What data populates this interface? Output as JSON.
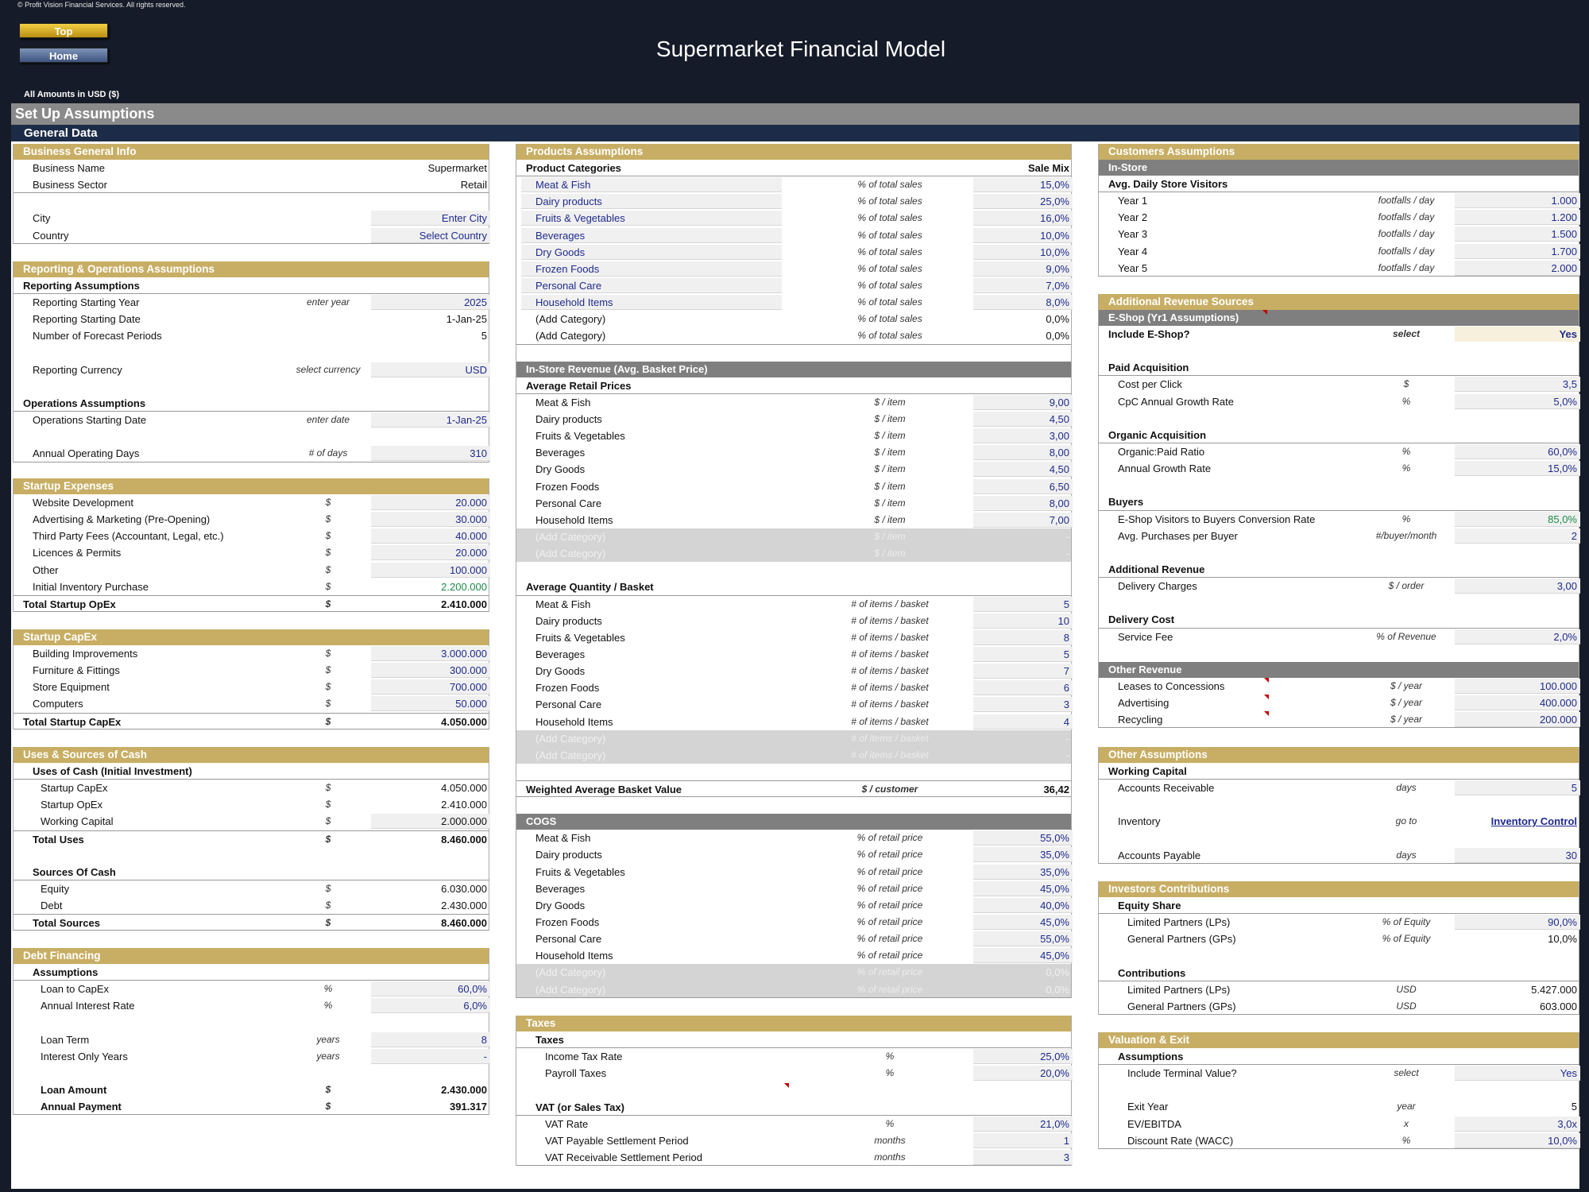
{
  "copyright": "© Profit Vision Financial Services. All rights reserved.",
  "nav": {
    "top": "Top",
    "home": "Home"
  },
  "title": "Supermarket Financial Model",
  "amounts_label": "All Amounts in  USD ($)",
  "setup_title": "Set Up Assumptions",
  "general_title": "General Data",
  "colors": {
    "gold": "#c8ae64",
    "navy": "#1c2b47",
    "gray": "#7f7f7f",
    "input_blue": "#1f2a8c",
    "green": "#1c8a48"
  },
  "business": {
    "header": "Business General Info",
    "rows": [
      {
        "label": "Business Name",
        "value": "Supermarket"
      },
      {
        "label": "Business Sector",
        "value": "Retail"
      },
      {
        "label": "City",
        "value": "Enter City"
      },
      {
        "label": "Country",
        "value": "Select Country"
      }
    ]
  },
  "reporting": {
    "header": "Reporting & Operations Assumptions",
    "reporting_title": "Reporting Assumptions",
    "rows": [
      {
        "label": "Reporting Starting Year",
        "unit": "enter year",
        "value": "2025"
      },
      {
        "label": "Reporting Starting Date",
        "unit": "",
        "value": "1-Jan-25"
      },
      {
        "label": "Number of Forecast Periods",
        "unit": "",
        "value": "5"
      },
      {
        "label": "Reporting Currency",
        "unit": "select currency",
        "value": "USD"
      }
    ],
    "operations_title": "Operations Assumptions",
    "ops_rows": [
      {
        "label": "Operations Starting Date",
        "unit": "enter date",
        "value": "1-Jan-25"
      },
      {
        "label": "Annual Operating Days",
        "unit": "# of days",
        "value": "310"
      }
    ]
  },
  "startup_opex": {
    "header": "Startup Expenses",
    "rows": [
      {
        "label": "Website Development",
        "unit": "$",
        "value": "20.000"
      },
      {
        "label": "Advertising & Marketing (Pre-Opening)",
        "unit": "$",
        "value": "30.000"
      },
      {
        "label": "Third Party Fees (Accountant, Legal, etc.)",
        "unit": "$",
        "value": "40.000"
      },
      {
        "label": "Licences & Permits",
        "unit": "$",
        "value": "20.000"
      },
      {
        "label": "Other",
        "unit": "$",
        "value": "100.000"
      },
      {
        "label": "Initial Inventory Purchase",
        "unit": "$",
        "value": "2.200.000"
      }
    ],
    "total": {
      "label": "Total Startup OpEx",
      "unit": "$",
      "value": "2.410.000"
    }
  },
  "startup_capex": {
    "header": "Startup CapEx",
    "rows": [
      {
        "label": "Building Improvements",
        "unit": "$",
        "value": "3.000.000"
      },
      {
        "label": "Furniture & Fittings",
        "unit": "$",
        "value": "300.000"
      },
      {
        "label": "Store Equipment",
        "unit": "$",
        "value": "700.000"
      },
      {
        "label": "Computers",
        "unit": "$",
        "value": "50.000"
      }
    ],
    "total": {
      "label": "Total Startup CapEx",
      "unit": "$",
      "value": "4.050.000"
    }
  },
  "uses_sources": {
    "header": "Uses & Sources of Cash",
    "uses_title": "Uses of Cash (Initial Investment)",
    "uses": [
      {
        "label": "Startup CapEx",
        "unit": "$",
        "value": "4.050.000"
      },
      {
        "label": "Startup OpEx",
        "unit": "$",
        "value": "2.410.000"
      },
      {
        "label": "Working Capital",
        "unit": "$",
        "value": "2.000.000"
      }
    ],
    "total_uses": {
      "label": "Total Uses",
      "unit": "$",
      "value": "8.460.000"
    },
    "sources_title": "Sources Of Cash",
    "sources": [
      {
        "label": "Equity",
        "unit": "$",
        "value": "6.030.000"
      },
      {
        "label": "Debt",
        "unit": "$",
        "value": "2.430.000"
      }
    ],
    "total_sources": {
      "label": "Total Sources",
      "unit": "$",
      "value": "8.460.000"
    }
  },
  "debt": {
    "header": "Debt Financing",
    "assumptions_title": "Assumptions",
    "rows": [
      {
        "label": "Loan to CapEx",
        "unit": "%",
        "value": "60,0%"
      },
      {
        "label": "Annual Interest Rate",
        "unit": "%",
        "value": "6,0%"
      },
      {
        "label": "Loan Term",
        "unit": "years",
        "value": "8"
      },
      {
        "label": "Interest Only Years",
        "unit": "years",
        "value": "-"
      }
    ],
    "loan_amount": {
      "label": "Loan Amount",
      "unit": "$",
      "value": "2.430.000"
    },
    "annual_payment": {
      "label": "Annual Payment",
      "unit": "$",
      "value": "391.317"
    }
  },
  "products": {
    "header": "Products Assumptions",
    "cat_title": "Product Categories",
    "mix_title": "Sale Mix",
    "mix_unit": "% of total sales",
    "categories": [
      {
        "name": "Meat & Fish",
        "mix": "15,0%"
      },
      {
        "name": "Dairy products",
        "mix": "25,0%"
      },
      {
        "name": "Fruits & Vegetables",
        "mix": "16,0%"
      },
      {
        "name": "Beverages",
        "mix": "10,0%"
      },
      {
        "name": "Dry Goods",
        "mix": "10,0%"
      },
      {
        "name": "Frozen Foods",
        "mix": "9,0%"
      },
      {
        "name": "Personal Care",
        "mix": "7,0%"
      },
      {
        "name": "Household Items",
        "mix": "8,0%"
      },
      {
        "name": "(Add Category)",
        "mix": "0,0%"
      },
      {
        "name": "(Add Category)",
        "mix": "0,0%"
      }
    ],
    "instore_header": "In-Store Revenue (Avg. Basket Price)",
    "prices_title": "Average Retail Prices",
    "price_unit": "$ / item",
    "prices": [
      {
        "name": "Meat & Fish",
        "value": "9,00"
      },
      {
        "name": "Dairy products",
        "value": "4,50"
      },
      {
        "name": "Fruits & Vegetables",
        "value": "3,00"
      },
      {
        "name": "Beverages",
        "value": "8,00"
      },
      {
        "name": "Dry Goods",
        "value": "4,50"
      },
      {
        "name": "Frozen Foods",
        "value": "6,50"
      },
      {
        "name": "Personal Care",
        "value": "8,00"
      },
      {
        "name": "Household Items",
        "value": "7,00"
      },
      {
        "name": "(Add Category)",
        "value": "-"
      },
      {
        "name": "(Add Category)",
        "value": "-"
      }
    ],
    "qty_title": "Average Quantity / Basket",
    "qty_unit": "# of items / basket",
    "quantities": [
      {
        "name": "Meat & Fish",
        "value": "5"
      },
      {
        "name": "Dairy products",
        "value": "10"
      },
      {
        "name": "Fruits & Vegetables",
        "value": "8"
      },
      {
        "name": "Beverages",
        "value": "5"
      },
      {
        "name": "Dry Goods",
        "value": "7"
      },
      {
        "name": "Frozen Foods",
        "value": "6"
      },
      {
        "name": "Personal Care",
        "value": "3"
      },
      {
        "name": "Household Items",
        "value": "4"
      },
      {
        "name": "(Add Category)",
        "value": "-"
      },
      {
        "name": "(Add Category)",
        "value": "-"
      }
    ],
    "basket": {
      "label": "Weighted Average Basket Value",
      "unit": "$ / customer",
      "value": "36,42"
    },
    "cogs_header": "COGS",
    "cogs_unit": "% of retail price",
    "cogs": [
      {
        "name": "Meat & Fish",
        "value": "55,0%"
      },
      {
        "name": "Dairy products",
        "value": "35,0%"
      },
      {
        "name": "Fruits & Vegetables",
        "value": "35,0%"
      },
      {
        "name": "Beverages",
        "value": "45,0%"
      },
      {
        "name": "Dry Goods",
        "value": "40,0%"
      },
      {
        "name": "Frozen Foods",
        "value": "45,0%"
      },
      {
        "name": "Personal Care",
        "value": "55,0%"
      },
      {
        "name": "Household Items",
        "value": "45,0%"
      },
      {
        "name": "(Add Category)",
        "value": "0,0%"
      },
      {
        "name": "(Add Category)",
        "value": "0,0%"
      }
    ]
  },
  "taxes": {
    "header": "Taxes",
    "taxes_title": "Taxes",
    "rows": [
      {
        "label": "Income Tax Rate",
        "unit": "%",
        "value": "25,0%"
      },
      {
        "label": "Payroll Taxes",
        "unit": "%",
        "value": "20,0%"
      }
    ],
    "vat_title": "VAT (or Sales Tax)",
    "vat_rows": [
      {
        "label": "VAT Rate",
        "unit": "%",
        "value": "21,0%"
      },
      {
        "label": "VAT Payable Settlement Period",
        "unit": "months",
        "value": "1"
      },
      {
        "label": "VAT Receivable Settlement Period",
        "unit": "months",
        "value": "3"
      }
    ]
  },
  "customers": {
    "header": "Customers Assumptions",
    "instore_sub": "In-Store",
    "visitors_title": "Avg. Daily Store Visitors",
    "unit": "footfalls / day",
    "years": [
      {
        "label": "Year 1",
        "value": "1.000"
      },
      {
        "label": "Year 2",
        "value": "1.200"
      },
      {
        "label": "Year 3",
        "value": "1.500"
      },
      {
        "label": "Year 4",
        "value": "1.700"
      },
      {
        "label": "Year 5",
        "value": "2.000"
      }
    ]
  },
  "additional": {
    "header": "Additional Revenue Sources",
    "eshop_sub": "E-Shop (Yr1 Assumptions)",
    "include": {
      "label": "Include E-Shop?",
      "unit": "select",
      "value": "Yes"
    },
    "paid_title": "Paid Acquisition",
    "paid": [
      {
        "label": "Cost per Click",
        "unit": "$",
        "value": "3,5"
      },
      {
        "label": "CpC Annual Growth Rate",
        "unit": "%",
        "value": "5,0%"
      }
    ],
    "organic_title": "Organic Acquisition",
    "organic": [
      {
        "label": "Organic:Paid Ratio",
        "unit": "%",
        "value": "60,0%"
      },
      {
        "label": "Annual Growth Rate",
        "unit": "%",
        "value": "15,0%"
      }
    ],
    "buyers_title": "Buyers",
    "buyers": [
      {
        "label": "E-Shop Visitors to Buyers Conversion Rate",
        "unit": "%",
        "value": "85,0%"
      },
      {
        "label": "Avg. Purchases per Buyer",
        "unit": "#/buyer/month",
        "value": "2"
      }
    ],
    "addrev_title": "Additional Revenue",
    "delivery": {
      "label": "Delivery Charges",
      "unit": "$ / order",
      "value": "3,00"
    },
    "cost_title": "Delivery Cost",
    "service": {
      "label": "Service Fee",
      "unit": "% of Revenue",
      "value": "2,0%"
    },
    "other_sub": "Other Revenue",
    "other": [
      {
        "label": "Leases to Concessions",
        "unit": "$ / year",
        "value": "100.000"
      },
      {
        "label": "Advertising",
        "unit": "$ / year",
        "value": "400.000"
      },
      {
        "label": "Recycling",
        "unit": "$ / year",
        "value": "200.000"
      }
    ]
  },
  "other_assumptions": {
    "header": "Other Assumptions",
    "wc_title": "Working Capital",
    "ar": {
      "label": "Accounts Receivable",
      "unit": "days",
      "value": "5"
    },
    "inventory": {
      "label": "Inventory",
      "unit": "go to",
      "value": "Inventory Control"
    },
    "ap": {
      "label": "Accounts Payable",
      "unit": "days",
      "value": "30"
    }
  },
  "investors": {
    "header": "Investors Contributions",
    "equity_title": "Equity Share",
    "equity": [
      {
        "label": "Limited Partners (LPs)",
        "unit": "% of Equity",
        "value": "90,0%"
      },
      {
        "label": "General Partners (GPs)",
        "unit": "% of Equity",
        "value": "10,0%"
      }
    ],
    "contrib_title": "Contributions",
    "contrib": [
      {
        "label": "Limited Partners (LPs)",
        "unit": "USD",
        "value": "5.427.000"
      },
      {
        "label": "General Partners (GPs)",
        "unit": "USD",
        "value": "603.000"
      }
    ]
  },
  "valuation": {
    "header": "Valuation & Exit",
    "assumptions_title": "Assumptions",
    "terminal": {
      "label": "Include Terminal Value?",
      "unit": "select",
      "value": "Yes"
    },
    "rows": [
      {
        "label": "Exit Year",
        "unit": "year",
        "value": "5"
      },
      {
        "label": "EV/EBITDA",
        "unit": "x",
        "value": "3,0x"
      },
      {
        "label": "Discount Rate (WACC)",
        "unit": "%",
        "value": "10,0%"
      }
    ]
  }
}
